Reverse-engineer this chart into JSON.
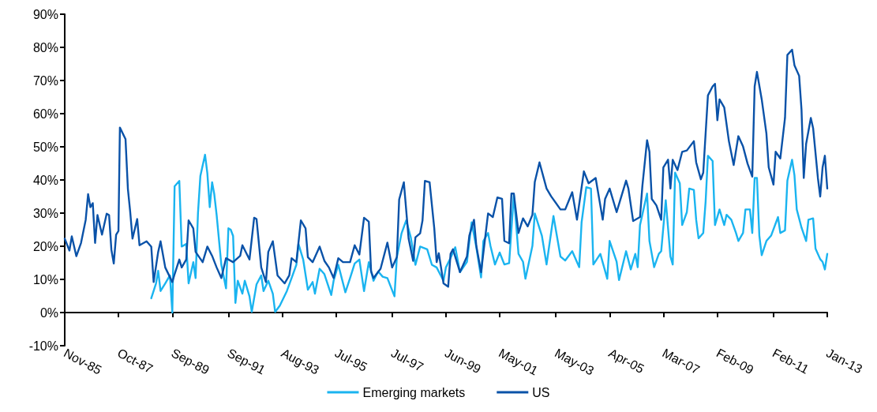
{
  "chart_data": {
    "type": "line",
    "legend": "bottom",
    "xlim": [
      "1985-11",
      "2013-01"
    ],
    "xticks": [
      {
        "value": "1985-11",
        "label": "Nov-85"
      },
      {
        "value": "1987-10",
        "label": "Oct-87"
      },
      {
        "value": "1989-09",
        "label": "Sep-89"
      },
      {
        "value": "1991-09",
        "label": "Sep-91"
      },
      {
        "value": "1993-08",
        "label": "Aug-93"
      },
      {
        "value": "1995-07",
        "label": "Jul-95"
      },
      {
        "value": "1997-07",
        "label": "Jul-97"
      },
      {
        "value": "1999-06",
        "label": "Jun-99"
      },
      {
        "value": "2001-05",
        "label": "May-01"
      },
      {
        "value": "2003-05",
        "label": "May-03"
      },
      {
        "value": "2005-04",
        "label": "Apr-05"
      },
      {
        "value": "2007-03",
        "label": "Mar-07"
      },
      {
        "value": "2009-02",
        "label": "Feb-09"
      },
      {
        "value": "2011-02",
        "label": "Feb-11"
      },
      {
        "value": "2013-01",
        "label": "Jan-13"
      }
    ],
    "ylim": [
      -10,
      90
    ],
    "yticks": [
      {
        "value": -10,
        "label": "-10%"
      },
      {
        "value": 0,
        "label": "0%"
      },
      {
        "value": 10,
        "label": "10%"
      },
      {
        "value": 20,
        "label": "20%"
      },
      {
        "value": 30,
        "label": "30%"
      },
      {
        "value": 40,
        "label": "40%"
      },
      {
        "value": 50,
        "label": "50%"
      },
      {
        "value": 60,
        "label": "60%"
      },
      {
        "value": 70,
        "label": "70%"
      },
      {
        "value": 80,
        "label": "80%"
      },
      {
        "value": 90,
        "label": "90%"
      }
    ],
    "series": [
      {
        "name": "Emerging markets",
        "color": "#1ab4f0",
        "x": [
          "1988-12",
          "1989-02",
          "1989-03",
          "1989-04",
          "1989-06",
          "1989-08",
          "1989-09",
          "1989-10",
          "1989-12",
          "1990-01",
          "1990-03",
          "1990-04",
          "1990-06",
          "1990-07",
          "1990-08",
          "1990-09",
          "1990-11",
          "1990-12",
          "1991-01",
          "1991-02",
          "1991-03",
          "1991-04",
          "1991-06",
          "1991-08",
          "1991-09",
          "1991-10",
          "1991-11",
          "1991-12",
          "1992-01",
          "1992-03",
          "1992-04",
          "1992-06",
          "1992-07",
          "1992-09",
          "1992-11",
          "1992-12",
          "1993-02",
          "1993-04",
          "1993-05",
          "1993-07",
          "1993-10",
          "1993-12",
          "1994-02",
          "1994-03",
          "1994-05",
          "1994-07",
          "1994-09",
          "1994-10",
          "1994-12",
          "1995-02",
          "1995-05",
          "1995-06",
          "1995-08",
          "1995-11",
          "1996-01",
          "1996-03",
          "1996-05",
          "1996-07",
          "1996-09",
          "1996-11",
          "1997-01",
          "1997-03",
          "1997-05",
          "1997-08",
          "1997-09",
          "1997-11",
          "1998-01",
          "1998-03",
          "1998-05",
          "1998-07",
          "1998-10",
          "1998-12",
          "1999-02",
          "1999-05",
          "1999-06",
          "1999-08",
          "1999-10",
          "1999-12",
          "2000-03",
          "2000-05",
          "2000-07",
          "2000-09",
          "2000-10",
          "2000-12",
          "2001-01",
          "2001-03",
          "2001-05",
          "2001-07",
          "2001-09",
          "2001-11",
          "2002-01",
          "2002-03",
          "2002-04",
          "2002-07",
          "2002-08",
          "2002-11",
          "2003-01",
          "2003-04",
          "2003-07",
          "2003-09",
          "2003-12",
          "2004-03",
          "2004-04",
          "2004-06",
          "2004-08",
          "2004-09",
          "2004-12",
          "2005-03",
          "2005-04",
          "2005-07",
          "2005-08",
          "2005-11",
          "2006-01",
          "2006-03",
          "2006-04",
          "2006-05",
          "2006-08",
          "2006-09",
          "2006-11",
          "2007-01",
          "2007-02",
          "2007-04",
          "2007-06",
          "2007-07",
          "2007-08",
          "2007-10",
          "2007-11",
          "2008-01",
          "2008-02",
          "2008-04",
          "2008-05",
          "2008-06",
          "2008-08",
          "2008-09",
          "2008-10",
          "2008-12",
          "2009-01",
          "2009-03",
          "2009-05",
          "2009-06",
          "2009-08",
          "2009-10",
          "2009-11",
          "2010-01",
          "2010-02",
          "2010-04",
          "2010-05",
          "2010-06",
          "2010-07",
          "2010-08",
          "2010-09",
          "2010-11",
          "2011-01",
          "2011-04",
          "2011-05",
          "2011-07",
          "2011-08",
          "2011-10",
          "2011-11",
          "2011-12",
          "2012-02",
          "2012-04",
          "2012-05",
          "2012-07",
          "2012-08",
          "2012-10",
          "2012-11",
          "2012-12",
          "2013-01"
        ],
        "values": [
          4.3,
          8.8,
          12.6,
          6.5,
          8.8,
          11.2,
          0,
          38.1,
          39.7,
          19.9,
          20.7,
          8.8,
          15.2,
          10.4,
          30,
          41.2,
          47.6,
          42,
          31.8,
          39.3,
          35.7,
          29.4,
          14.4,
          7.3,
          25.4,
          25,
          23.1,
          2.9,
          9.6,
          5.7,
          9.6,
          4.9,
          0.2,
          8.5,
          11.2,
          6.5,
          9.6,
          5.7,
          0.2,
          2.1,
          6.5,
          10.4,
          14.4,
          20.7,
          16,
          6.9,
          9.2,
          5.7,
          13.2,
          11.6,
          5.3,
          9.6,
          14.4,
          6.1,
          10.4,
          14.8,
          16,
          6.5,
          15.2,
          9.6,
          12.4,
          10.8,
          10.4,
          4.9,
          16.7,
          23.9,
          27.8,
          22.7,
          14.4,
          19.9,
          19.1,
          14.4,
          13.6,
          9.6,
          13.6,
          16.5,
          19.7,
          12.2,
          15.3,
          27.2,
          19.7,
          10.6,
          21.6,
          24,
          20.1,
          14.5,
          18.1,
          14.5,
          14.9,
          35.5,
          17.7,
          15.3,
          10.2,
          20.1,
          29.9,
          23.2,
          14.5,
          29.1,
          16.9,
          15.7,
          18.5,
          13.7,
          27.2,
          37.8,
          37.4,
          14.5,
          17.7,
          10.2,
          21.6,
          15.3,
          9.8,
          18.5,
          13,
          17.7,
          13.7,
          26.4,
          35.9,
          21.6,
          13.7,
          17.7,
          18.5,
          33.9,
          16.9,
          14.5,
          42.2,
          39,
          26.4,
          30.3,
          37.4,
          37,
          28,
          22.4,
          24,
          33.5,
          47.3,
          45.7,
          26.4,
          31.1,
          26.4,
          29.5,
          28,
          24,
          21.6,
          24,
          31.1,
          31.1,
          24,
          40.6,
          40.6,
          23.2,
          17.3,
          21.6,
          23.2,
          28.8,
          24,
          24.8,
          39.8,
          46.1,
          41.4,
          31.1,
          25.6,
          21.6,
          28,
          28.4,
          19.3,
          16.1,
          15.3,
          13,
          17.7
        ]
      },
      {
        "name": "US",
        "color": "#0a52a8",
        "x": [
          "1985-11",
          "1986-01",
          "1986-02",
          "1986-04",
          "1986-06",
          "1986-08",
          "1986-09",
          "1986-10",
          "1986-11",
          "1986-12",
          "1987-01",
          "1987-03",
          "1987-05",
          "1987-06",
          "1987-07",
          "1987-08",
          "1987-09",
          "1987-10-01",
          "1987-10-20",
          "1988-01",
          "1988-02",
          "1988-03",
          "1988-04",
          "1988-06",
          "1988-07",
          "1988-10",
          "1988-12",
          "1989-01",
          "1989-03",
          "1989-04",
          "1989-06",
          "1989-09",
          "1989-10",
          "1989-12",
          "1990-01",
          "1990-03",
          "1990-04",
          "1990-06",
          "1990-07",
          "1990-10",
          "1990-12",
          "1991-02",
          "1991-04",
          "1991-06",
          "1991-08",
          "1991-11",
          "1992-02",
          "1992-03",
          "1992-06",
          "1992-08",
          "1992-09",
          "1992-11",
          "1993-01",
          "1993-02",
          "1993-04",
          "1993-06",
          "1993-09",
          "1993-11",
          "1993-12",
          "1994-02",
          "1994-04",
          "1994-06",
          "1994-07",
          "1994-09",
          "1994-12",
          "1995-02",
          "1995-04",
          "1995-06",
          "1995-08",
          "1995-10",
          "1996-01",
          "1996-03",
          "1996-05",
          "1996-07",
          "1996-09",
          "1996-10",
          "1996-11",
          "1997-02",
          "1997-05",
          "1997-07",
          "1997-09",
          "1997-10",
          "1997-12",
          "1998-02",
          "1998-04",
          "1998-05",
          "1998-07",
          "1998-08",
          "1998-09",
          "1998-11",
          "1999-01",
          "1999-02",
          "1999-03",
          "1999-05",
          "1999-07",
          "1999-08",
          "1999-09",
          "1999-12",
          "2000-03",
          "2000-04",
          "2000-06",
          "2000-07",
          "2000-09",
          "2000-12",
          "2001-02",
          "2001-04",
          "2001-06",
          "2001-07",
          "2001-09",
          "2001-10",
          "2001-11",
          "2002-01",
          "2002-03",
          "2002-05",
          "2002-07",
          "2002-08",
          "2002-10",
          "2003-01",
          "2003-03",
          "2003-07",
          "2003-09",
          "2003-12",
          "2004-02",
          "2004-05",
          "2004-07",
          "2004-10",
          "2005-01",
          "2005-02",
          "2005-04",
          "2005-07",
          "2005-11",
          "2005-12",
          "2006-02",
          "2006-05",
          "2006-06",
          "2006-08",
          "2006-09",
          "2006-10",
          "2006-12",
          "2007-02",
          "2007-03",
          "2007-05",
          "2007-06",
          "2007-07",
          "2007-09",
          "2007-11",
          "2008-01",
          "2008-04",
          "2008-05",
          "2008-07",
          "2008-08",
          "2008-10",
          "2008-12",
          "2009-01",
          "2009-02",
          "2009-03",
          "2009-05",
          "2009-07",
          "2009-09",
          "2009-11",
          "2010-01",
          "2010-03",
          "2010-05",
          "2010-06",
          "2010-07",
          "2010-09",
          "2010-11",
          "2010-12",
          "2011-02",
          "2011-03",
          "2011-05",
          "2011-07",
          "2011-08",
          "2011-10",
          "2011-11",
          "2012-01",
          "2012-02",
          "2012-03",
          "2012-04",
          "2012-06",
          "2012-07",
          "2012-09",
          "2012-10",
          "2012-11",
          "2012-12",
          "2013-01"
        ],
        "values": [
          22.3,
          18.7,
          23,
          17,
          21,
          28,
          35.7,
          31.8,
          33,
          21,
          29.4,
          23.5,
          29.8,
          29.4,
          19,
          14.8,
          23.5,
          24.6,
          55.8,
          52.3,
          37.3,
          30.6,
          22.3,
          28.2,
          20.3,
          21.5,
          19.9,
          9.2,
          18.3,
          21.5,
          13.6,
          9.2,
          11.6,
          16,
          13.6,
          16,
          27.8,
          25.4,
          18.3,
          15.2,
          19.9,
          17.1,
          13.6,
          10.4,
          16.4,
          15.2,
          17.1,
          20.3,
          16,
          28.6,
          28.2,
          13.6,
          9.2,
          18.3,
          21.5,
          11.2,
          8.8,
          11.2,
          16.4,
          15.2,
          27.8,
          25.4,
          16.7,
          15.2,
          19.9,
          15.6,
          13.6,
          10.4,
          16.4,
          15.2,
          15.2,
          20.3,
          17.5,
          28.6,
          27.4,
          12.4,
          10.4,
          13.2,
          21.1,
          13.6,
          16.7,
          34.1,
          39.3,
          22.3,
          15.6,
          22.7,
          23.9,
          27.8,
          39.7,
          39.3,
          25.4,
          15.2,
          17.9,
          8.8,
          7.8,
          17.7,
          19.1,
          12.2,
          16.9,
          23.2,
          28,
          20.1,
          12.2,
          29.9,
          28.8,
          34.7,
          34.3,
          21.6,
          20.9,
          35.9,
          35.9,
          24,
          28.4,
          26,
          29.5,
          39.4,
          45.3,
          37.4,
          35.1,
          31.1,
          31.1,
          36.3,
          28,
          42.6,
          39,
          40.6,
          28,
          34.3,
          37.4,
          30.3,
          39.8,
          37.4,
          27.6,
          28.8,
          38.2,
          52,
          48.5,
          34.3,
          32.3,
          28,
          43.8,
          46.1,
          37.4,
          46.1,
          43,
          48.5,
          48.9,
          51.7,
          45.3,
          40.2,
          42.2,
          65.5,
          68.2,
          69,
          58,
          64.3,
          61.9,
          51.7,
          44.5,
          53.2,
          50.1,
          44.9,
          41,
          68.2,
          72.6,
          64.3,
          54,
          43.8,
          38.6,
          48.5,
          46.5,
          58.7,
          77.7,
          79.3,
          74.6,
          71.4,
          61.1,
          40.6,
          50.9,
          58.7,
          55.6,
          40.6,
          35,
          43.8,
          47.3,
          37.4
        ]
      }
    ]
  }
}
